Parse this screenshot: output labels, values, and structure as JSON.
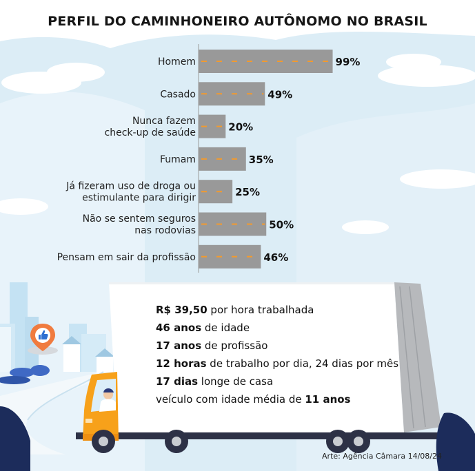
{
  "title": "PERFIL DO CAMINHONEIRO AUTÔNOMO NO BRASIL",
  "chart_data": {
    "type": "bar",
    "orientation": "horizontal",
    "categories": [
      [
        "Homem"
      ],
      [
        "Casado"
      ],
      [
        "Nunca fazem",
        "check-up de saúde"
      ],
      [
        "Fumam"
      ],
      [
        "Já fizeram uso de droga ou",
        "estimulante para dirigir"
      ],
      [
        "Não se sentem seguros",
        "nas rodovias"
      ],
      [
        "Pensam em sair da profissão"
      ]
    ],
    "values": [
      99,
      49,
      20,
      35,
      25,
      50,
      46
    ],
    "value_labels": [
      "99%",
      "49%",
      "20%",
      "35%",
      "25%",
      "50%",
      "46%"
    ],
    "xlim": [
      0,
      100
    ],
    "grid": false,
    "bar_color": "#999999",
    "dash_color": "#f29a2e"
  },
  "facts": [
    {
      "bold": "R$ 39,50",
      "text": " por hora trabalhada"
    },
    {
      "bold": "46 anos",
      "text": " de idade"
    },
    {
      "bold": "17 anos",
      "text": " de profissão"
    },
    {
      "bold": "12 horas",
      "text": " de trabalho por dia, 24 dias por mês"
    },
    {
      "bold": "17 dias",
      "text": " longe de casa"
    },
    {
      "pre": "veículo com idade média de ",
      "bold": "11 anos"
    }
  ],
  "credit": "Arte: Agência Câmara 14/08/24",
  "colors": {
    "sky": "#dcedf6",
    "cloud": "#ffffff",
    "road": "#f3f8fb",
    "truck_cab": "#f7a11a",
    "trailer_side": "#b7b9bc",
    "tree": "#1c2c5b",
    "building": "#bfdff2",
    "pin": "#f07b3f"
  },
  "icons": [
    "location-pin-icon",
    "thumbs-up-icon",
    "truck-driver-illustration"
  ]
}
